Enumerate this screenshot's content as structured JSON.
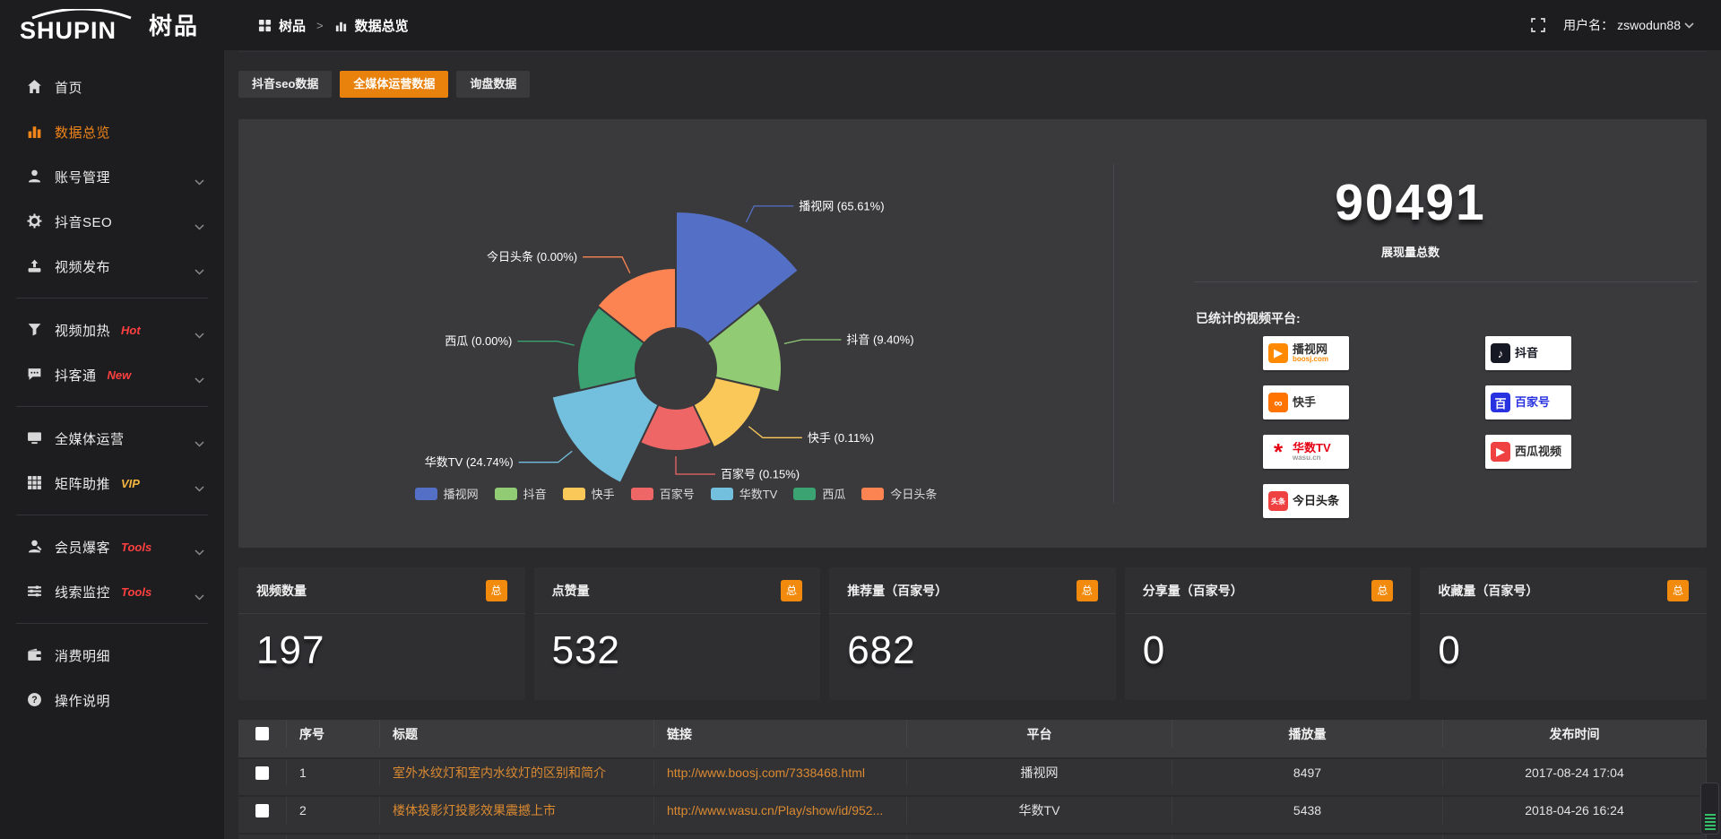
{
  "header": {
    "logo_text": "SHUPIN",
    "logo_cn": "树品",
    "breadcrumb_root": "树品",
    "breadcrumb_sep": ">",
    "breadcrumb_current": "数据总览",
    "username_prefix": "用户名：",
    "username": "zswodun88"
  },
  "sidebar": {
    "items": [
      {
        "label": "首页",
        "icon": "home",
        "chevron": false,
        "active": false,
        "badge": "",
        "badge_color": "",
        "divider_after": false
      },
      {
        "label": "数据总览",
        "icon": "chart",
        "chevron": false,
        "active": true,
        "badge": "",
        "badge_color": "",
        "divider_after": false
      },
      {
        "label": "账号管理",
        "icon": "user",
        "chevron": true,
        "active": false,
        "badge": "",
        "badge_color": "",
        "divider_after": false
      },
      {
        "label": "抖音SEO",
        "icon": "gear",
        "chevron": true,
        "active": false,
        "badge": "",
        "badge_color": "",
        "divider_after": false
      },
      {
        "label": "视频发布",
        "icon": "video",
        "chevron": true,
        "active": false,
        "badge": "",
        "badge_color": "",
        "divider_after": true
      },
      {
        "label": "视频加热",
        "icon": "heat",
        "chevron": true,
        "active": false,
        "badge": "Hot",
        "badge_color": "#ff4040",
        "divider_after": false
      },
      {
        "label": "抖客通",
        "icon": "chat",
        "chevron": true,
        "active": false,
        "badge": "New",
        "badge_color": "#ff4040",
        "divider_after": true
      },
      {
        "label": "全媒体运营",
        "icon": "monitor",
        "chevron": true,
        "active": false,
        "badge": "",
        "badge_color": "",
        "divider_after": false
      },
      {
        "label": "矩阵助推",
        "icon": "grid",
        "chevron": true,
        "active": false,
        "badge": "VIP",
        "badge_color": "#f5b63f",
        "divider_after": true
      },
      {
        "label": "会员爆客",
        "icon": "member",
        "chevron": true,
        "active": false,
        "badge": "Tools",
        "badge_color": "#ff4040",
        "divider_after": false
      },
      {
        "label": "线索监控",
        "icon": "sliders",
        "chevron": true,
        "active": false,
        "badge": "Tools",
        "badge_color": "#ff4040",
        "divider_after": true
      },
      {
        "label": "消费明细",
        "icon": "wallet",
        "chevron": false,
        "active": false,
        "badge": "",
        "badge_color": "",
        "divider_after": false
      },
      {
        "label": "操作说明",
        "icon": "help",
        "chevron": false,
        "active": false,
        "badge": "",
        "badge_color": "",
        "divider_after": false
      }
    ]
  },
  "tabs": [
    {
      "label": "抖音seo数据",
      "active": false
    },
    {
      "label": "全媒体运营数据",
      "active": true
    },
    {
      "label": "询盘数据",
      "active": false
    }
  ],
  "chart_data": {
    "type": "pie",
    "variant": "nightingale-rose",
    "label_format": "{name} ({pct}%)",
    "legend_position": "bottom",
    "items": [
      {
        "name": "播视网",
        "pct": 65.61,
        "color": "#5470c6"
      },
      {
        "name": "抖音",
        "pct": 9.4,
        "color": "#91cc75"
      },
      {
        "name": "快手",
        "pct": 0.11,
        "color": "#fac858"
      },
      {
        "name": "百家号",
        "pct": 0.15,
        "color": "#ee6666"
      },
      {
        "name": "华数TV",
        "pct": 24.74,
        "color": "#73c0de"
      },
      {
        "name": "西瓜",
        "pct": 0.0,
        "color": "#3ba272"
      },
      {
        "name": "今日头条",
        "pct": 0.0,
        "color": "#fc8452"
      }
    ],
    "radius_px": [
      175,
      118,
      98,
      92,
      142,
      110,
      112
    ],
    "inner_radius_px": 45,
    "legend": [
      "播视网",
      "抖音",
      "快手",
      "百家号",
      "华数TV",
      "西瓜",
      "今日头条"
    ]
  },
  "summary": {
    "total_value": "90491",
    "total_label": "展现量总数",
    "platforms_title": "已统计的视频平台:",
    "platforms_left": [
      {
        "name": "播视网",
        "sub": "boosj.com",
        "glyph": "▶",
        "glyph_bg": "#ff8a00",
        "glyph_color": "#fff",
        "name_color": "#333",
        "sub_color": "#ff8a00"
      },
      {
        "name": "快手",
        "sub": "",
        "glyph": "∞",
        "glyph_bg": "#ff7300",
        "glyph_color": "#fff",
        "name_color": "#333",
        "sub_color": ""
      },
      {
        "name": "华数TV",
        "sub": "wasu.cn",
        "glyph": "*",
        "glyph_bg": "",
        "glyph_color": "#e60013",
        "name_color": "#e60013",
        "sub_color": "#999"
      },
      {
        "name": "今日头条",
        "sub": "",
        "glyph": "头条",
        "glyph_bg": "#f04142",
        "glyph_color": "#fff",
        "name_color": "#222",
        "sub_color": ""
      }
    ],
    "platforms_right": [
      {
        "name": "抖音",
        "sub": "",
        "glyph": "♪",
        "glyph_bg": "#161823",
        "glyph_color": "#fff",
        "name_color": "#161823",
        "sub_color": ""
      },
      {
        "name": "百家号",
        "sub": "",
        "glyph": "百",
        "glyph_bg": "#2932e1",
        "glyph_color": "#fff",
        "name_color": "#2932e1",
        "sub_color": ""
      },
      {
        "name": "西瓜视频",
        "sub": "",
        "glyph": "▶",
        "glyph_bg": "#f04142",
        "glyph_color": "#fff",
        "name_color": "#333",
        "sub_color": ""
      }
    ]
  },
  "stat_cards": [
    {
      "label": "视频数量",
      "badge": "总",
      "value": "197"
    },
    {
      "label": "点赞量",
      "badge": "总",
      "value": "532"
    },
    {
      "label": "推荐量（百家号）",
      "badge": "总",
      "value": "682"
    },
    {
      "label": "分享量（百家号）",
      "badge": "总",
      "value": "0"
    },
    {
      "label": "收藏量（百家号）",
      "badge": "总",
      "value": "0"
    }
  ],
  "table": {
    "columns": [
      {
        "label": "",
        "align": "center"
      },
      {
        "label": "序号",
        "align": "left"
      },
      {
        "label": "标题",
        "align": "left"
      },
      {
        "label": "链接",
        "align": "left"
      },
      {
        "label": "平台",
        "align": "center"
      },
      {
        "label": "播放量",
        "align": "center"
      },
      {
        "label": "发布时间",
        "align": "center"
      }
    ],
    "rows": [
      {
        "index": "1",
        "title": "室外水纹灯和室内水纹灯的区别和简介",
        "link": "http://www.boosj.com/7338468.html",
        "platform": "播视网",
        "plays": "8497",
        "time": "2017-08-24 17:04"
      },
      {
        "index": "2",
        "title": "楼体投影灯投影效果震撼上市",
        "link": "http://www.wasu.cn/Play/show/id/952...",
        "platform": "华数TV",
        "plays": "5438",
        "time": "2018-04-26 16:24"
      },
      {
        "index": "",
        "title": "",
        "link": "",
        "platform": "",
        "plays": "",
        "time": ""
      }
    ]
  }
}
